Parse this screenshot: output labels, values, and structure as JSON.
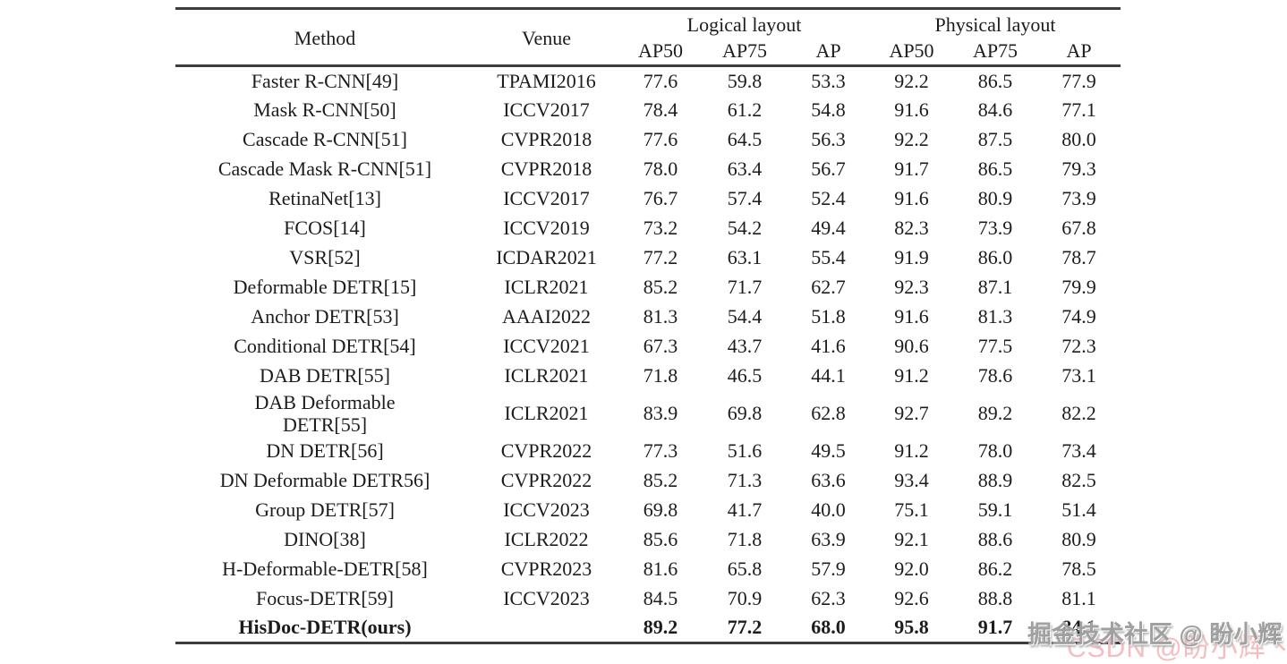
{
  "table": {
    "headers": {
      "method": "Method",
      "venue": "Venue",
      "logical": "Logical layout",
      "physical": "Physical layout"
    },
    "subheaders": [
      "AP50",
      "AP75",
      "AP",
      "AP50",
      "AP75",
      "AP"
    ],
    "rows": [
      {
        "method": "Faster R-CNN[49]",
        "venue": "TPAMI2016",
        "values": [
          "77.6",
          "59.8",
          "53.3",
          "92.2",
          "86.5",
          "77.9"
        ],
        "bold": false
      },
      {
        "method": "Mask R-CNN[50]",
        "venue": "ICCV2017",
        "values": [
          "78.4",
          "61.2",
          "54.8",
          "91.6",
          "84.6",
          "77.1"
        ],
        "bold": false
      },
      {
        "method": "Cascade R-CNN[51]",
        "venue": "CVPR2018",
        "values": [
          "77.6",
          "64.5",
          "56.3",
          "92.2",
          "87.5",
          "80.0"
        ],
        "bold": false
      },
      {
        "method": "Cascade Mask R-CNN[51]",
        "venue": "CVPR2018",
        "values": [
          "78.0",
          "63.4",
          "56.7",
          "91.7",
          "86.5",
          "79.3"
        ],
        "bold": false
      },
      {
        "method": "RetinaNet[13]",
        "venue": "ICCV2017",
        "values": [
          "76.7",
          "57.4",
          "52.4",
          "91.6",
          "80.9",
          "73.9"
        ],
        "bold": false
      },
      {
        "method": "FCOS[14]",
        "venue": "ICCV2019",
        "values": [
          "73.2",
          "54.2",
          "49.4",
          "82.3",
          "73.9",
          "67.8"
        ],
        "bold": false
      },
      {
        "method": "VSR[52]",
        "venue": "ICDAR2021",
        "values": [
          "77.2",
          "63.1",
          "55.4",
          "91.9",
          "86.0",
          "78.7"
        ],
        "bold": false
      },
      {
        "method": "Deformable DETR[15]",
        "venue": "ICLR2021",
        "values": [
          "85.2",
          "71.7",
          "62.7",
          "92.3",
          "87.1",
          "79.9"
        ],
        "bold": false
      },
      {
        "method": "Anchor DETR[53]",
        "venue": "AAAI2022",
        "values": [
          "81.3",
          "54.4",
          "51.8",
          "91.6",
          "81.3",
          "74.9"
        ],
        "bold": false
      },
      {
        "method": "Conditional DETR[54]",
        "venue": "ICCV2021",
        "values": [
          "67.3",
          "43.7",
          "41.6",
          "90.6",
          "77.5",
          "72.3"
        ],
        "bold": false
      },
      {
        "method": "DAB DETR[55]",
        "venue": "ICLR2021",
        "values": [
          "71.8",
          "46.5",
          "44.1",
          "91.2",
          "78.6",
          "73.1"
        ],
        "bold": false
      },
      {
        "method": "DAB Deformable\nDETR[55]",
        "venue": "ICLR2021",
        "values": [
          "83.9",
          "69.8",
          "62.8",
          "92.7",
          "89.2",
          "82.2"
        ],
        "bold": false
      },
      {
        "method": "DN DETR[56]",
        "venue": "CVPR2022",
        "values": [
          "77.3",
          "51.6",
          "49.5",
          "91.2",
          "78.0",
          "73.4"
        ],
        "bold": false
      },
      {
        "method": "DN Deformable DETR56]",
        "venue": "CVPR2022",
        "values": [
          "85.2",
          "71.3",
          "63.6",
          "93.4",
          "88.9",
          "82.5"
        ],
        "bold": false
      },
      {
        "method": "Group DETR[57]",
        "venue": "ICCV2023",
        "values": [
          "69.8",
          "41.7",
          "40.0",
          "75.1",
          "59.1",
          "51.4"
        ],
        "bold": false
      },
      {
        "method": "DINO[38]",
        "venue": "ICLR2022",
        "values": [
          "85.6",
          "71.8",
          "63.9",
          "92.1",
          "88.6",
          "80.9"
        ],
        "bold": false
      },
      {
        "method": "H-Deformable-DETR[58]",
        "venue": "CVPR2023",
        "values": [
          "81.6",
          "65.8",
          "57.9",
          "92.0",
          "86.2",
          "78.5"
        ],
        "bold": false
      },
      {
        "method": "Focus-DETR[59]",
        "venue": "ICCV2023",
        "values": [
          "84.5",
          "70.9",
          "62.3",
          "92.6",
          "88.8",
          "81.1"
        ],
        "bold": false
      },
      {
        "method": "HisDoc-DETR(ours)",
        "venue": "",
        "values": [
          "89.2",
          "77.2",
          "68.0",
          "95.8",
          "91.7",
          "84.1"
        ],
        "bold": true
      }
    ]
  },
  "watermark": {
    "primary_text": "掘金技术社区 @ 盼小辉丶",
    "secondary_text": "CSDN @盼小辉丶",
    "primary_color": "#a0a0a0",
    "secondary_color": "#f5bdbf"
  }
}
